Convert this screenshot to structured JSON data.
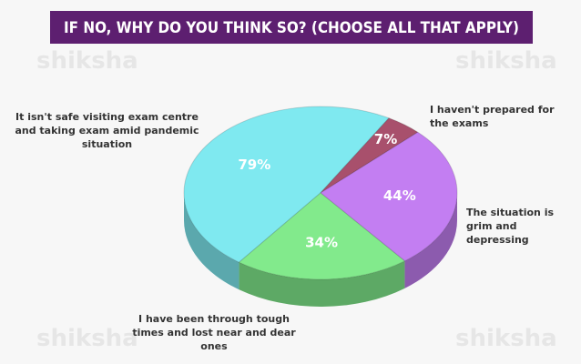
{
  "chart_data": {
    "type": "pie3d",
    "title": "IF NO, WHY DO YOU THINK SO? (CHOOSE ALL THAT APPLY)",
    "watermark": "shiksha",
    "categories": [
      "It isn't safe visiting exam centre and taking exam amid pandemic situation",
      "I haven't prepared for the exams",
      "The situation is grim and depressing",
      "I have been through tough times and lost near and dear ones"
    ],
    "values": [
      79,
      7,
      44,
      34
    ],
    "value_labels": [
      "79%",
      "7%",
      "44%",
      "34%"
    ],
    "colors": [
      "#7fe9f0",
      "#a8506c",
      "#c37ef2",
      "#82ea8c"
    ]
  }
}
